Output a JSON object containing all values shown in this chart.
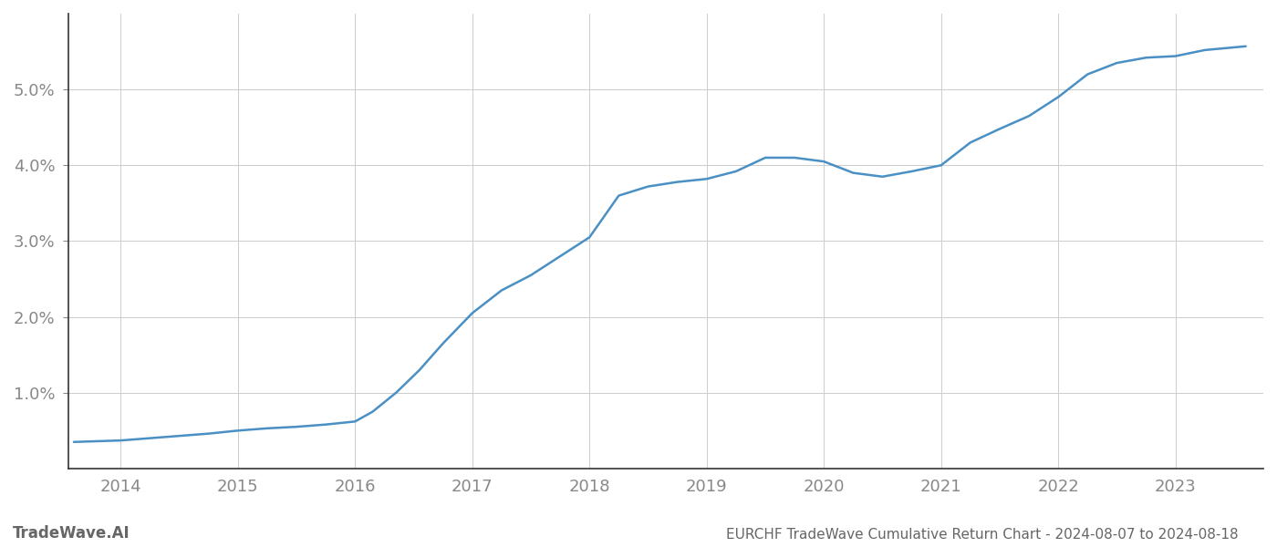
{
  "title": "EURCHF TradeWave Cumulative Return Chart - 2024-08-07 to 2024-08-18",
  "watermark": "TradeWave.AI",
  "line_color": "#4a90c4",
  "background_color": "#ffffff",
  "grid_color": "#cccccc",
  "x_years": [
    2014,
    2015,
    2016,
    2017,
    2018,
    2019,
    2020,
    2021,
    2022,
    2023
  ],
  "x_data": [
    2013.6,
    2014.0,
    2014.25,
    2014.5,
    2014.75,
    2015.0,
    2015.25,
    2015.5,
    2015.75,
    2016.0,
    2016.15,
    2016.35,
    2016.55,
    2016.75,
    2017.0,
    2017.25,
    2017.5,
    2017.75,
    2018.0,
    2018.25,
    2018.5,
    2018.75,
    2019.0,
    2019.25,
    2019.5,
    2019.75,
    2020.0,
    2020.25,
    2020.5,
    2020.75,
    2021.0,
    2021.25,
    2021.5,
    2021.75,
    2022.0,
    2022.25,
    2022.5,
    2022.75,
    2023.0,
    2023.25,
    2023.6
  ],
  "y_data": [
    0.35,
    0.37,
    0.4,
    0.43,
    0.46,
    0.5,
    0.53,
    0.55,
    0.58,
    0.62,
    0.75,
    1.0,
    1.3,
    1.65,
    2.05,
    2.35,
    2.55,
    2.8,
    3.05,
    3.6,
    3.72,
    3.78,
    3.82,
    3.92,
    4.1,
    4.1,
    4.05,
    3.9,
    3.85,
    3.92,
    4.0,
    4.3,
    4.48,
    4.65,
    4.9,
    5.2,
    5.35,
    5.42,
    5.44,
    5.52,
    5.57
  ],
  "ylim": [
    0.0,
    6.0
  ],
  "yticks": [
    1.0,
    2.0,
    3.0,
    4.0,
    5.0
  ],
  "xlim_left": 2013.55,
  "xlim_right": 2023.75,
  "tick_color": "#888888",
  "spine_color": "#333333",
  "title_color": "#666666",
  "title_fontsize": 11,
  "watermark_fontsize": 12,
  "line_width": 1.8,
  "tick_fontsize": 13
}
